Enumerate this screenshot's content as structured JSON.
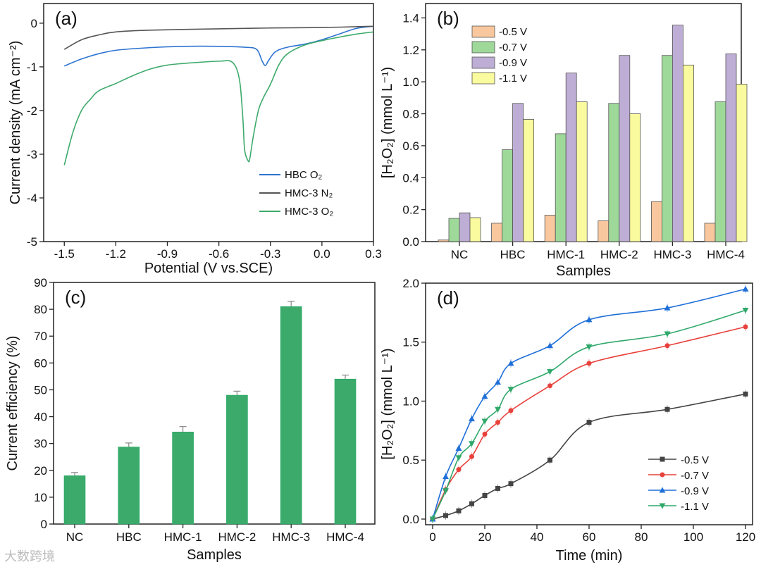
{
  "watermark": "大数跨境",
  "chart_data": [
    {
      "panel": "(a)",
      "type": "line",
      "xlabel": "Potential (V vs.SCE)",
      "ylabel": "Current density (mA cm⁻²)",
      "xlim": [
        -1.62,
        0.3
      ],
      "ylim": [
        -5,
        0.45
      ],
      "xticks": [
        -1.5,
        -1.2,
        -0.9,
        -0.6,
        -0.3,
        0.0,
        0.3
      ],
      "xtick_labels": [
        "-1.5",
        "-1.2",
        "-0.9",
        "-0.6",
        "-0.3",
        "0.0",
        "0.3"
      ],
      "yticks": [
        0,
        -1,
        -2,
        -3,
        -4,
        -5
      ],
      "ytick_labels": [
        "0",
        "-1",
        "-2",
        "-3",
        "-4",
        "-5"
      ],
      "legend_position": "bottom-right",
      "series": [
        {
          "name": "HBC O₂",
          "color": "#2D74D0",
          "x": [
            -1.5,
            -1.4,
            -1.3,
            -1.2,
            -1.0,
            -0.8,
            -0.6,
            -0.45,
            -0.38,
            -0.35,
            -0.33,
            -0.31,
            -0.27,
            -0.2,
            -0.1,
            0.0,
            0.1,
            0.2,
            0.3
          ],
          "y": [
            -0.98,
            -0.82,
            -0.7,
            -0.62,
            -0.56,
            -0.53,
            -0.53,
            -0.55,
            -0.6,
            -0.85,
            -0.97,
            -0.85,
            -0.65,
            -0.55,
            -0.48,
            -0.38,
            -0.25,
            -0.12,
            -0.07
          ]
        },
        {
          "name": "HMC-3 N₂",
          "color": "#555555",
          "x": [
            -1.5,
            -1.4,
            -1.3,
            -1.2,
            -1.0,
            -0.6,
            -0.3,
            0.0,
            0.3
          ],
          "y": [
            -0.6,
            -0.38,
            -0.27,
            -0.2,
            -0.16,
            -0.13,
            -0.11,
            -0.1,
            -0.07
          ]
        },
        {
          "name": "HMC-3 O₂",
          "color": "#3DAA6B",
          "x": [
            -1.5,
            -1.45,
            -1.4,
            -1.35,
            -1.3,
            -1.2,
            -1.1,
            -1.0,
            -0.9,
            -0.8,
            -0.6,
            -0.52,
            -0.48,
            -0.46,
            -0.45,
            -0.43,
            -0.42,
            -0.4,
            -0.37,
            -0.34,
            -0.3,
            -0.25,
            -0.2,
            -0.1,
            0.0,
            0.1,
            0.2,
            0.3
          ],
          "y": [
            -3.25,
            -2.5,
            -2.0,
            -1.75,
            -1.55,
            -1.38,
            -1.2,
            -1.05,
            -0.96,
            -0.92,
            -0.87,
            -0.9,
            -1.3,
            -2.2,
            -2.9,
            -3.15,
            -3.1,
            -2.6,
            -2.0,
            -1.7,
            -1.4,
            -0.95,
            -0.7,
            -0.5,
            -0.4,
            -0.32,
            -0.25,
            -0.2
          ]
        }
      ]
    },
    {
      "panel": "(b)",
      "type": "bar",
      "xlabel": "Samples",
      "ylabel": "[H₂O₂] (mmol L⁻¹)",
      "ylim": [
        0,
        1.49
      ],
      "yticks": [
        0,
        0.2,
        0.4,
        0.6,
        0.8,
        1.0,
        1.2,
        1.4
      ],
      "ytick_labels": [
        "0.0",
        "0.2",
        "0.4",
        "0.6",
        "0.8",
        "1.0",
        "1.2",
        "1.4"
      ],
      "legend_position": "top-left",
      "categories": [
        "NC",
        "HBC",
        "HMC-1",
        "HMC-2",
        "HMC-3",
        "HMC-4"
      ],
      "series": [
        {
          "name": "-0.5 V",
          "color": "#F9C79D",
          "values": [
            0.01,
            0.115,
            0.165,
            0.13,
            0.25,
            0.115
          ]
        },
        {
          "name": "-0.7 V",
          "color": "#9ED99A",
          "values": [
            0.145,
            0.575,
            0.675,
            0.865,
            1.165,
            0.875
          ]
        },
        {
          "name": "-0.9 V",
          "color": "#BEAED6",
          "values": [
            0.18,
            0.865,
            1.055,
            1.165,
            1.355,
            1.175
          ]
        },
        {
          "name": "-1.1 V",
          "color": "#FAFA9E",
          "values": [
            0.15,
            0.765,
            0.875,
            0.8,
            1.105,
            0.985
          ]
        }
      ]
    },
    {
      "panel": "(c)",
      "type": "bar",
      "xlabel": "Samples",
      "ylabel": "Current efficiency (%)",
      "ylim": [
        0,
        90
      ],
      "yticks": [
        0,
        10,
        20,
        30,
        40,
        50,
        60,
        70,
        80,
        90
      ],
      "ytick_labels": [
        "0",
        "10",
        "20",
        "30",
        "40",
        "50",
        "60",
        "70",
        "80",
        "90"
      ],
      "categories": [
        "NC",
        "HBC",
        "HMC-1",
        "HMC-2",
        "HMC-3",
        "HMC-4"
      ],
      "color": "#3BAA6A",
      "values": [
        18,
        28.7,
        34.3,
        48,
        81,
        54
      ],
      "errors": [
        1.2,
        1.5,
        2.0,
        1.5,
        2.0,
        1.5
      ]
    },
    {
      "panel": "(d)",
      "type": "line",
      "xlabel": "Time (min)",
      "ylabel": "[H₂O₂] (mmol L⁻¹)",
      "xlim": [
        -2.7,
        122.7
      ],
      "ylim": [
        -0.048,
        2.0
      ],
      "xticks": [
        0,
        20,
        40,
        60,
        80,
        100,
        120
      ],
      "xtick_labels": [
        "0",
        "20",
        "40",
        "60",
        "80",
        "100",
        "120"
      ],
      "yticks": [
        0,
        0.5,
        1.0,
        1.5,
        2.0
      ],
      "ytick_labels": [
        "0.0",
        "0.5",
        "1.0",
        "1.5",
        "2.0"
      ],
      "legend_position": "bottom-right",
      "x": [
        0,
        5,
        10,
        15,
        20,
        25,
        30,
        45,
        60,
        90,
        120
      ],
      "series": [
        {
          "name": "-0.5 V",
          "color": "#444444",
          "marker": "square",
          "values": [
            0,
            0.03,
            0.07,
            0.13,
            0.2,
            0.26,
            0.3,
            0.5,
            0.82,
            0.93,
            1.06
          ]
        },
        {
          "name": "-0.7 V",
          "color": "#E8413C",
          "marker": "circle",
          "values": [
            0,
            0.25,
            0.42,
            0.53,
            0.72,
            0.82,
            0.92,
            1.13,
            1.32,
            1.47,
            1.63
          ]
        },
        {
          "name": "-0.9 V",
          "color": "#1F6FD8",
          "marker": "triangle-up",
          "values": [
            0,
            0.36,
            0.6,
            0.85,
            1.04,
            1.16,
            1.32,
            1.47,
            1.69,
            1.79,
            1.95
          ]
        },
        {
          "name": "-1.1 V",
          "color": "#2FA86A",
          "marker": "triangle-down",
          "values": [
            0,
            0.24,
            0.52,
            0.64,
            0.83,
            0.93,
            1.1,
            1.25,
            1.46,
            1.57,
            1.77
          ]
        }
      ]
    }
  ]
}
